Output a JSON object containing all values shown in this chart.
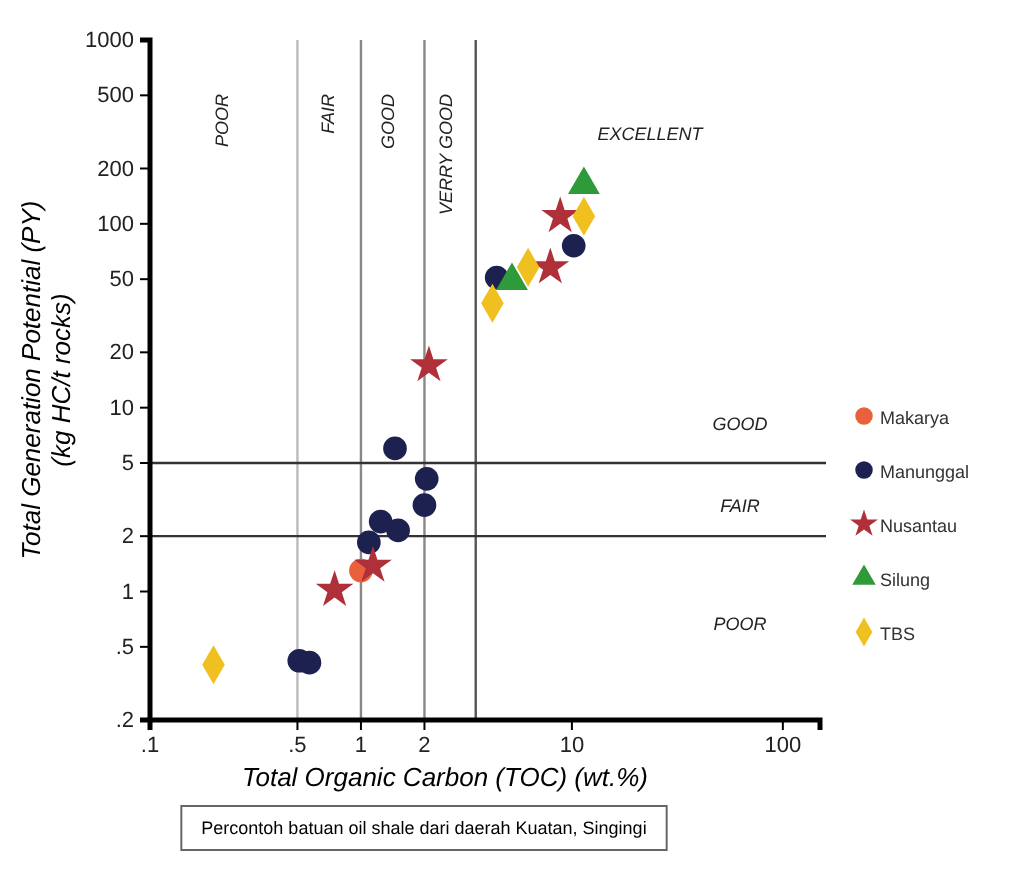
{
  "chart_data": {
    "type": "scatter",
    "xlabel": "Total Organic Carbon (TOC) (wt.%)",
    "ylabel": "Total Generation Potential (PY)\n(kg HC/t rocks)",
    "log": "xy",
    "grid": false,
    "legend": "right",
    "xlim": [
      0.1,
      150
    ],
    "xticks": [
      {
        "value": 0.1,
        "label": ".1"
      },
      {
        "value": 0.5,
        "label": ".5"
      },
      1,
      2,
      10,
      100
    ],
    "ylim": [
      0.2,
      1000
    ],
    "yticks": [
      {
        "value": 0.2,
        "label": ".2"
      },
      {
        "value": 0.5,
        "label": ".5"
      },
      1,
      2,
      5,
      10,
      20,
      50,
      100,
      200,
      500,
      1000
    ],
    "ref_lines": [
      {
        "axis": "x",
        "value": 0.5,
        "color": "#bbbbbb"
      },
      {
        "axis": "x",
        "value": 1,
        "color": "#888888"
      },
      {
        "axis": "x",
        "value": 2,
        "color": "#888888"
      },
      {
        "axis": "x",
        "value": 3.5,
        "color": "#555555"
      },
      {
        "axis": "y",
        "value": 2,
        "color": "#333333"
      },
      {
        "axis": "y",
        "value": 5,
        "color": "#333333"
      }
    ],
    "annotations": [
      "POOR",
      "FAIR",
      "GOOD",
      "VERRY GOOD",
      "EXCELLENT",
      "GOOD",
      "FAIR",
      "POOR",
      "Percontoh batuan oil shale dari daerah Kuatan, Singingi"
    ],
    "series": [
      {
        "name": "Makarya",
        "color": "#e8603c",
        "marker": "circle",
        "x": [
          1.0
        ],
        "values": [
          1.3
        ]
      },
      {
        "name": "Manunggal",
        "color": "#1c2150",
        "marker": "circle",
        "x": [
          0.51,
          0.57,
          1.09,
          1.24,
          1.5,
          1.45,
          2.0,
          2.05,
          4.4,
          10.2
        ],
        "values": [
          0.42,
          0.41,
          1.85,
          2.4,
          2.15,
          6.0,
          2.95,
          4.1,
          51,
          76
        ]
      },
      {
        "name": "Nusantau",
        "color": "#b0303a",
        "marker": "star",
        "x": [
          0.75,
          1.14,
          2.1,
          7.9,
          8.8
        ],
        "values": [
          1.02,
          1.38,
          17,
          58,
          110
        ]
      },
      {
        "name": "Silung",
        "color": "#2e9a3a",
        "marker": "triangle",
        "x": [
          5.2,
          11.4
        ],
        "values": [
          49,
          163
        ]
      },
      {
        "name": "TBS",
        "color": "#f0c020",
        "marker": "diamond",
        "x": [
          0.2,
          4.2,
          6.2,
          11.4
        ],
        "values": [
          0.4,
          37,
          58,
          110
        ]
      }
    ]
  }
}
